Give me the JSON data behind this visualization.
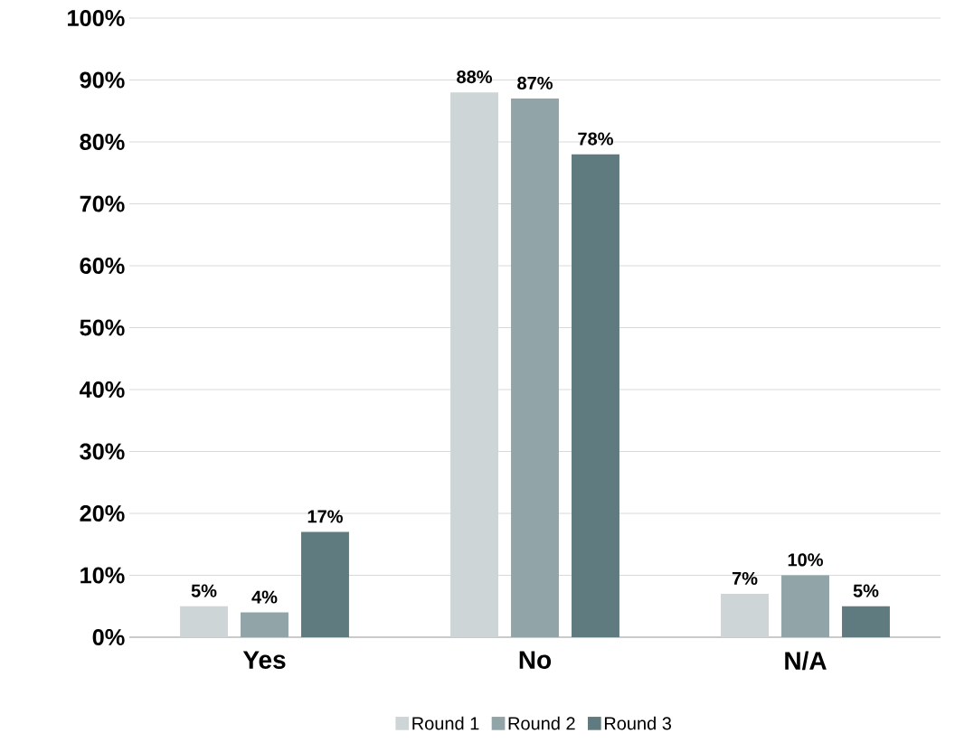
{
  "chart_data": {
    "type": "bar",
    "categories": [
      "Yes",
      "No",
      "N/A"
    ],
    "series": [
      {
        "name": "Round 1",
        "color": "#cdd5d6",
        "values": [
          5,
          88,
          7
        ],
        "value_labels": [
          "5%",
          "88%",
          "7%"
        ]
      },
      {
        "name": "Round 2",
        "color": "#91a4a7",
        "values": [
          4,
          87,
          10
        ],
        "value_labels": [
          "4%",
          "87%",
          "10%"
        ]
      },
      {
        "name": "Round 3",
        "color": "#5f7b7f",
        "values": [
          17,
          78,
          5
        ],
        "value_labels": [
          "17%",
          "78%",
          "5%"
        ]
      }
    ],
    "ylim": [
      0,
      100
    ],
    "yticks": [
      {
        "value": 0,
        "label": "0%"
      },
      {
        "value": 10,
        "label": "10%"
      },
      {
        "value": 20,
        "label": "20%"
      },
      {
        "value": 30,
        "label": "30%"
      },
      {
        "value": 40,
        "label": "40%"
      },
      {
        "value": 50,
        "label": "50%"
      },
      {
        "value": 60,
        "label": "60%"
      },
      {
        "value": 70,
        "label": "70%"
      },
      {
        "value": 80,
        "label": "80%"
      },
      {
        "value": 90,
        "label": "90%"
      },
      {
        "value": 100,
        "label": "100%"
      }
    ],
    "grid": "y",
    "legend": "bottom"
  }
}
